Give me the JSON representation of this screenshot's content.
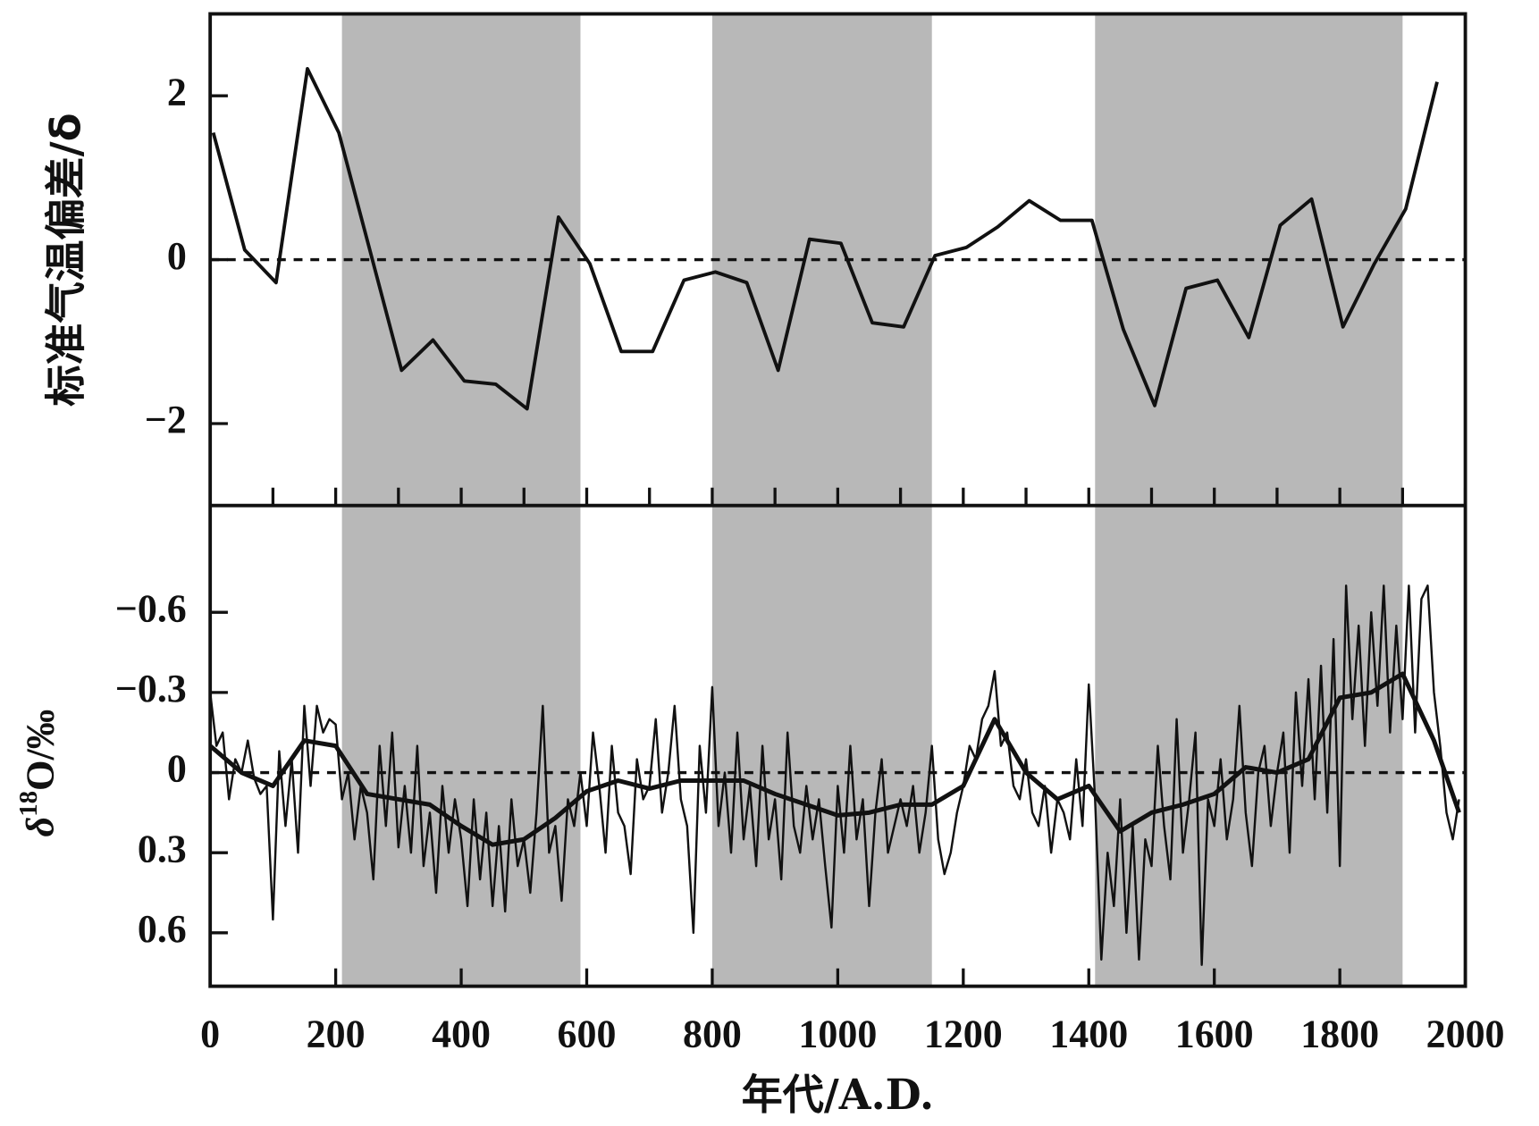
{
  "chart_data": [
    {
      "type": "line",
      "ylabel": "标准气温偏差/δ",
      "xlim": [
        0,
        2000
      ],
      "ylim": [
        -3,
        3
      ],
      "xticks": [
        0,
        100,
        200,
        300,
        400,
        500,
        600,
        700,
        800,
        900,
        1000,
        1100,
        1200,
        1300,
        1400,
        1500,
        1600,
        1700,
        1800,
        1900,
        2000
      ],
      "yticks": [
        {
          "value": -2,
          "label": "−2"
        },
        0,
        2
      ],
      "reference_line": 0,
      "shaded_periods": [
        [
          210,
          590
        ],
        [
          800,
          1150
        ],
        [
          1410,
          1900
        ]
      ],
      "shade_color": "#b8b8b8",
      "series": [
        {
          "color": "#111111",
          "x": [
            5,
            55,
            105,
            155,
            205,
            255,
            305,
            355,
            405,
            455,
            505,
            555,
            605,
            655,
            705,
            755,
            805,
            855,
            905,
            955,
            1005,
            1055,
            1105,
            1155,
            1205,
            1255,
            1305,
            1355,
            1405,
            1455,
            1505,
            1555,
            1605,
            1655,
            1705,
            1755,
            1805,
            1855,
            1905,
            1955
          ],
          "values": [
            1.55,
            0.12,
            -0.28,
            2.33,
            1.55,
            0.1,
            -1.35,
            -0.98,
            -1.48,
            -1.52,
            -1.82,
            0.52,
            -0.05,
            -1.12,
            -1.12,
            -0.25,
            -0.15,
            -0.28,
            -1.35,
            0.25,
            0.2,
            -0.77,
            -0.82,
            0.05,
            0.15,
            0.4,
            0.72,
            0.48,
            0.48,
            -0.85,
            -1.78,
            -0.35,
            -0.25,
            -0.95,
            0.42,
            0.74,
            -0.82,
            -0.05,
            0.62,
            2.17
          ]
        }
      ]
    },
    {
      "type": "line",
      "ylabel": [
        "δ",
        "18",
        "O/‰"
      ],
      "xlabel": "年代/A.D.",
      "xlim": [
        0,
        2000
      ],
      "ylim": [
        0.8,
        -1.0
      ],
      "xticks": [
        0,
        200,
        400,
        600,
        800,
        1000,
        1200,
        1400,
        1600,
        1800,
        2000
      ],
      "yticks": [
        {
          "value": -0.6,
          "label": "−0.6"
        },
        {
          "value": -0.3,
          "label": "−0.3"
        },
        0,
        0.3,
        0.6
      ],
      "reference_line": 0,
      "shaded_periods": [
        [
          210,
          590
        ],
        [
          800,
          1150
        ],
        [
          1410,
          1900
        ]
      ],
      "shade_color": "#b8b8b8",
      "series": [
        {
          "color": "#111111",
          "x": [
            0,
            10,
            20,
            30,
            40,
            50,
            60,
            70,
            80,
            90,
            100,
            110,
            120,
            130,
            140,
            150,
            160,
            170,
            180,
            190,
            200,
            210,
            220,
            230,
            240,
            250,
            260,
            270,
            280,
            290,
            300,
            310,
            320,
            330,
            340,
            350,
            360,
            370,
            380,
            390,
            400,
            410,
            420,
            430,
            440,
            450,
            460,
            470,
            480,
            490,
            500,
            510,
            520,
            530,
            540,
            550,
            560,
            570,
            580,
            590,
            600,
            610,
            620,
            630,
            640,
            650,
            660,
            670,
            680,
            690,
            700,
            710,
            720,
            730,
            740,
            750,
            760,
            770,
            780,
            790,
            800,
            810,
            820,
            830,
            840,
            850,
            860,
            870,
            880,
            890,
            900,
            910,
            920,
            930,
            940,
            950,
            960,
            970,
            980,
            990,
            1000,
            1010,
            1020,
            1030,
            1040,
            1050,
            1060,
            1070,
            1080,
            1090,
            1100,
            1110,
            1120,
            1130,
            1140,
            1150,
            1160,
            1170,
            1180,
            1190,
            1200,
            1210,
            1220,
            1230,
            1240,
            1250,
            1260,
            1270,
            1280,
            1290,
            1300,
            1310,
            1320,
            1330,
            1340,
            1350,
            1360,
            1370,
            1380,
            1390,
            1400,
            1410,
            1420,
            1430,
            1440,
            1450,
            1460,
            1470,
            1480,
            1490,
            1500,
            1510,
            1520,
            1530,
            1540,
            1550,
            1560,
            1570,
            1580,
            1590,
            1600,
            1610,
            1620,
            1630,
            1640,
            1650,
            1660,
            1670,
            1680,
            1690,
            1700,
            1710,
            1720,
            1730,
            1740,
            1750,
            1760,
            1770,
            1780,
            1790,
            1800,
            1810,
            1820,
            1830,
            1840,
            1850,
            1860,
            1870,
            1880,
            1890,
            1900,
            1910,
            1920,
            1930,
            1940,
            1950,
            1960,
            1970,
            1980,
            1990
          ],
          "values": [
            -0.3,
            -0.1,
            -0.15,
            0.1,
            -0.05,
            0.0,
            -0.12,
            0.02,
            0.08,
            0.05,
            0.55,
            -0.08,
            0.2,
            -0.05,
            0.3,
            -0.25,
            0.05,
            -0.25,
            -0.15,
            -0.2,
            -0.18,
            0.1,
            0.0,
            0.25,
            0.05,
            0.15,
            0.4,
            -0.1,
            0.2,
            -0.15,
            0.28,
            0.05,
            0.3,
            -0.1,
            0.35,
            0.15,
            0.45,
            0.05,
            0.3,
            0.1,
            0.25,
            0.5,
            0.1,
            0.4,
            0.15,
            0.5,
            0.2,
            0.52,
            0.1,
            0.35,
            0.25,
            0.45,
            0.15,
            -0.25,
            0.3,
            0.2,
            0.48,
            0.1,
            0.2,
            0.0,
            0.2,
            -0.15,
            0.05,
            0.3,
            -0.1,
            0.15,
            0.2,
            0.38,
            -0.05,
            0.1,
            0.05,
            -0.2,
            0.15,
            0.0,
            -0.25,
            0.1,
            0.2,
            0.6,
            -0.1,
            0.15,
            -0.32,
            0.2,
            0.0,
            0.3,
            -0.15,
            0.25,
            0.05,
            0.35,
            -0.1,
            0.25,
            0.1,
            0.4,
            -0.15,
            0.2,
            0.3,
            0.05,
            0.25,
            0.1,
            0.35,
            0.58,
            0.05,
            0.3,
            -0.1,
            0.25,
            0.1,
            0.5,
            0.15,
            -0.05,
            0.3,
            0.2,
            0.1,
            0.2,
            0.05,
            0.3,
            0.15,
            -0.1,
            0.25,
            0.38,
            0.3,
            0.15,
            0.05,
            -0.1,
            -0.05,
            -0.2,
            -0.25,
            -0.38,
            -0.1,
            -0.15,
            0.05,
            0.1,
            -0.05,
            0.15,
            0.2,
            0.05,
            0.3,
            0.1,
            0.15,
            0.25,
            -0.05,
            0.2,
            -0.33,
            0.1,
            0.7,
            0.3,
            0.5,
            0.1,
            0.6,
            0.2,
            0.7,
            0.25,
            0.35,
            -0.1,
            0.2,
            0.4,
            -0.2,
            0.3,
            0.1,
            -0.15,
            0.72,
            0.1,
            0.2,
            -0.05,
            0.25,
            0.1,
            -0.25,
            0.15,
            0.35,
            0.0,
            -0.1,
            0.2,
            0.0,
            -0.15,
            0.3,
            -0.3,
            0.05,
            -0.35,
            0.1,
            -0.4,
            0.15,
            -0.5,
            0.35,
            -0.7,
            -0.2,
            -0.55,
            -0.1,
            -0.6,
            -0.25,
            -0.7,
            -0.15,
            -0.55,
            -0.2,
            -0.7,
            -0.15,
            -0.65,
            -0.7,
            -0.3,
            -0.1,
            0.15,
            0.25,
            0.1
          ]
        },
        {
          "color": "#111111",
          "x": [
            0,
            50,
            100,
            150,
            200,
            250,
            300,
            350,
            400,
            450,
            500,
            550,
            600,
            650,
            700,
            750,
            800,
            850,
            900,
            950,
            1000,
            1050,
            1100,
            1150,
            1200,
            1250,
            1300,
            1350,
            1400,
            1450,
            1500,
            1550,
            1600,
            1650,
            1700,
            1750,
            1800,
            1850,
            1900,
            1950,
            1990
          ],
          "values": [
            -0.1,
            0.0,
            0.05,
            -0.12,
            -0.1,
            0.08,
            0.1,
            0.12,
            0.2,
            0.27,
            0.25,
            0.17,
            0.07,
            0.03,
            0.06,
            0.03,
            0.03,
            0.03,
            0.08,
            0.12,
            0.16,
            0.15,
            0.12,
            0.12,
            0.05,
            -0.2,
            0.0,
            0.1,
            0.05,
            0.22,
            0.15,
            0.12,
            0.08,
            -0.02,
            0.0,
            -0.05,
            -0.28,
            -0.3,
            -0.37,
            -0.12,
            0.15
          ]
        }
      ]
    }
  ]
}
